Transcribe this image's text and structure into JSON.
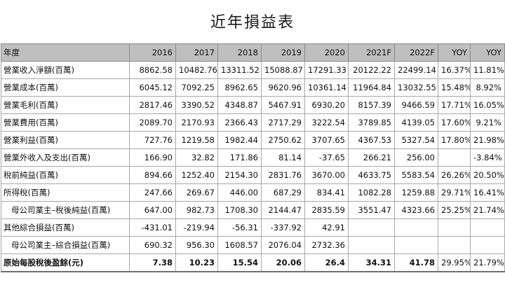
{
  "title": "近年損益表",
  "header": [
    "年度",
    "2016",
    "2017",
    "2018",
    "2019",
    "2020",
    "2021F",
    "2022F",
    "YOY",
    "YOY"
  ],
  "rows": [
    {
      "label": "營業收入淨額(百萬)",
      "indent": false,
      "bold": false,
      "cells": [
        "8862.58",
        "10482.76",
        "13311.52",
        "15088.87",
        "17291.33",
        "20122.22",
        "22499.14",
        "16.37%",
        "11.81%"
      ]
    },
    {
      "label": "營業成本(百萬)",
      "indent": false,
      "bold": false,
      "cells": [
        "6045.12",
        "7092.25",
        "8962.65",
        "9620.96",
        "10361.14",
        "11964.84",
        "13032.55",
        "15.48%",
        "8.92%"
      ]
    },
    {
      "label": "營業毛利(百萬)",
      "indent": false,
      "bold": false,
      "cells": [
        "2817.46",
        "3390.52",
        "4348.87",
        "5467.91",
        "6930.20",
        "8157.39",
        "9466.59",
        "17.71%",
        "16.05%"
      ]
    },
    {
      "label": "營業費用(百萬)",
      "indent": false,
      "bold": false,
      "cells": [
        "2089.70",
        "2170.93",
        "2366.43",
        "2717.29",
        "3222.54",
        "3789.85",
        "4139.05",
        "17.60%",
        "9.21%"
      ]
    },
    {
      "label": "營業利益(百萬)",
      "indent": false,
      "bold": false,
      "cells": [
        "727.76",
        "1219.58",
        "1982.44",
        "2750.62",
        "3707.65",
        "4367.53",
        "5327.54",
        "17.80%",
        "21.98%"
      ]
    },
    {
      "label": "營業外收入及支出(百萬)",
      "indent": false,
      "bold": false,
      "cells": [
        "166.90",
        "32.82",
        "171.86",
        "81.14",
        "-37.65",
        "266.21",
        "256.00",
        "",
        "-3.84%"
      ]
    },
    {
      "label": "稅前純益(百萬)",
      "indent": false,
      "bold": false,
      "cells": [
        "894.66",
        "1252.40",
        "2154.30",
        "2831.76",
        "3670.00",
        "4633.75",
        "5583.54",
        "26.26%",
        "20.50%"
      ]
    },
    {
      "label": "所得稅(百萬)",
      "indent": false,
      "bold": false,
      "cells": [
        "247.66",
        "269.67",
        "446.00",
        "687.29",
        "834.41",
        "1082.28",
        "1259.88",
        "29.71%",
        "16.41%"
      ]
    },
    {
      "label": "母公司業主–稅後純益(百萬)",
      "indent": true,
      "bold": false,
      "cells": [
        "647.00",
        "982.73",
        "1708.30",
        "2144.47",
        "2835.59",
        "3551.47",
        "4323.66",
        "25.25%",
        "21.74%"
      ]
    },
    {
      "label": "其他綜合損益(百萬)",
      "indent": false,
      "bold": false,
      "cells": [
        "-431.01",
        "-219.94",
        "-56.31",
        "-337.92",
        "42.91",
        "",
        "",
        "",
        ""
      ]
    },
    {
      "label": "母公司業主–綜合損益(百萬)",
      "indent": true,
      "bold": false,
      "cells": [
        "690.32",
        "956.30",
        "1608.57",
        "2076.04",
        "2732.36",
        "",
        "",
        "",
        ""
      ]
    },
    {
      "label": "原始每股稅後盈餘(元)",
      "indent": false,
      "bold": true,
      "cells": [
        "7.38",
        "10.23",
        "15.54",
        "20.06",
        "26.4",
        "34.31",
        "41.78",
        "29.95%",
        "21.79%"
      ]
    }
  ]
}
